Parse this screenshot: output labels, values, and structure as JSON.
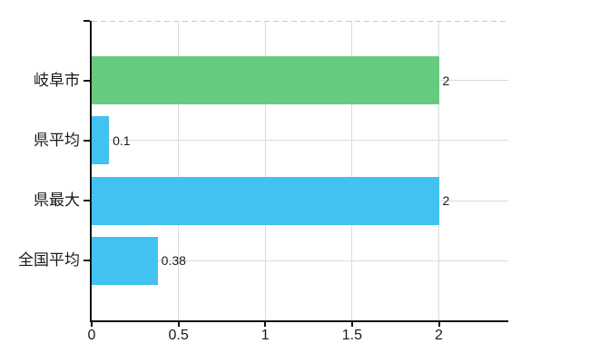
{
  "chart_data": {
    "type": "bar",
    "orientation": "horizontal",
    "title": "",
    "categories": [
      "岐阜市",
      "県平均",
      "県最大",
      "全国平均"
    ],
    "values": [
      2,
      0.1,
      2,
      0.38
    ],
    "value_labels": [
      "2",
      "0.1",
      "2",
      "0.38"
    ],
    "series": [
      {
        "name": "岐阜市",
        "value": 2,
        "color": "#66cb7e"
      },
      {
        "name": "県平均",
        "value": 0.1,
        "color": "#41c2f0"
      },
      {
        "name": "県最大",
        "value": 2,
        "color": "#41c2f0"
      },
      {
        "name": "全国平均",
        "value": 0.38,
        "color": "#41c2f0"
      }
    ],
    "bar_colors": [
      "#66cb7e",
      "#41c2f0",
      "#41c2f0",
      "#41c2f0"
    ],
    "x_ticks": [
      0,
      0.5,
      1,
      1.5,
      2
    ],
    "x_tick_labels": [
      "0",
      "0.5",
      "1",
      "1.5",
      "2"
    ],
    "xlim": [
      0,
      2.4
    ],
    "grid": true,
    "legend": false,
    "colors": {
      "green_bar": "#66cb7e",
      "blue_bar": "#41c2f0",
      "gridline": "#d8dcd8",
      "axis": "#111111",
      "background": "#ffffff",
      "text": "#1a1a1a"
    }
  }
}
